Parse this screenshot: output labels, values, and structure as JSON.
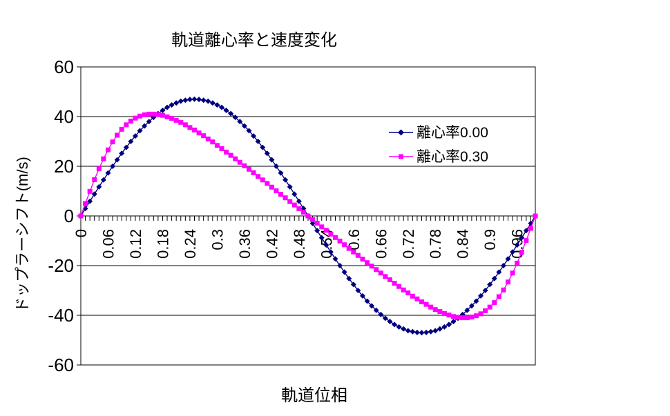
{
  "chart_data": {
    "type": "line",
    "title": "軌道離心率と速度変化",
    "xlabel": "軌道位相",
    "ylabel": "ドップラーシフト(m/s)",
    "grid": true,
    "legend_position": "inside-right",
    "ylim": [
      -60,
      60
    ],
    "y_tick_values": [
      60,
      40,
      20,
      0,
      -20,
      -40,
      -60
    ],
    "y_tick_labels": [
      "60",
      "40",
      "20",
      "0",
      "-20",
      "-40",
      "-60"
    ],
    "x_start": 0,
    "x_step": 0.01,
    "x_label_every": 6,
    "x_tick_labels": [
      "0",
      "0.06",
      "0.12",
      "0.18",
      "0.24",
      "0.3",
      "0.36",
      "0.42",
      "0.48",
      "0.54",
      "0.6",
      "0.66",
      "0.72",
      "0.78",
      "0.84",
      "0.9",
      "0.96"
    ],
    "series": [
      {
        "name": "離心率0.00",
        "color": "#000080",
        "marker": "diamond",
        "values": [
          0,
          3.0,
          5.9,
          8.8,
          11.7,
          14.5,
          17.3,
          20.0,
          22.6,
          25.2,
          27.6,
          30.0,
          32.2,
          34.3,
          36.2,
          38.0,
          39.7,
          41.2,
          42.5,
          43.7,
          44.7,
          45.5,
          46.2,
          46.6,
          46.9,
          47.0,
          46.9,
          46.6,
          46.2,
          45.5,
          44.7,
          43.7,
          42.5,
          41.2,
          39.7,
          38.0,
          36.2,
          34.3,
          32.2,
          30.0,
          27.6,
          25.2,
          22.6,
          20.0,
          17.3,
          14.5,
          11.7,
          8.8,
          5.9,
          3.0,
          0,
          -3.0,
          -5.9,
          -8.8,
          -11.7,
          -14.5,
          -17.3,
          -20.0,
          -22.6,
          -25.2,
          -27.6,
          -30.0,
          -32.2,
          -34.3,
          -36.2,
          -38.0,
          -39.7,
          -41.2,
          -42.5,
          -43.7,
          -44.7,
          -45.5,
          -46.2,
          -46.6,
          -46.9,
          -47.0,
          -46.9,
          -46.6,
          -46.2,
          -45.5,
          -44.7,
          -43.7,
          -42.5,
          -41.2,
          -39.7,
          -38.0,
          -36.2,
          -34.3,
          -32.2,
          -30.0,
          -27.6,
          -25.2,
          -22.6,
          -20.0,
          -17.3,
          -14.5,
          -11.7,
          -8.8,
          -5.9,
          -3.0,
          0
        ]
      },
      {
        "name": "離心率0.30",
        "color": "#FF00FF",
        "marker": "square",
        "values": [
          0,
          5.0,
          9.9,
          14.6,
          19.0,
          23.0,
          26.6,
          29.8,
          32.5,
          34.9,
          36.7,
          38.2,
          39.4,
          40.2,
          40.7,
          41.0,
          41.0,
          40.8,
          40.5,
          39.9,
          39.3,
          38.5,
          37.7,
          36.7,
          35.6,
          34.6,
          33.4,
          32.3,
          31.0,
          29.8,
          28.4,
          27.1,
          25.7,
          24.4,
          23.0,
          21.6,
          20.2,
          18.8,
          17.4,
          15.9,
          14.5,
          13.1,
          11.6,
          10.1,
          8.7,
          7.3,
          5.8,
          4.4,
          2.9,
          1.5,
          0,
          -1.5,
          -2.9,
          -4.4,
          -5.8,
          -7.3,
          -8.7,
          -10.1,
          -11.6,
          -13.1,
          -14.5,
          -15.9,
          -17.4,
          -18.8,
          -20.2,
          -21.6,
          -23.0,
          -24.4,
          -25.7,
          -27.1,
          -28.4,
          -29.8,
          -31.0,
          -32.3,
          -33.4,
          -34.6,
          -35.6,
          -36.7,
          -37.7,
          -38.5,
          -39.3,
          -39.9,
          -40.5,
          -40.8,
          -41.0,
          -41.0,
          -40.7,
          -40.2,
          -39.4,
          -38.2,
          -36.7,
          -34.9,
          -32.5,
          -29.8,
          -26.6,
          -23.0,
          -19.0,
          -14.6,
          -9.9,
          -5.0,
          0
        ]
      }
    ],
    "axis_color": "#000000",
    "background_color": "#FFFFFF"
  }
}
